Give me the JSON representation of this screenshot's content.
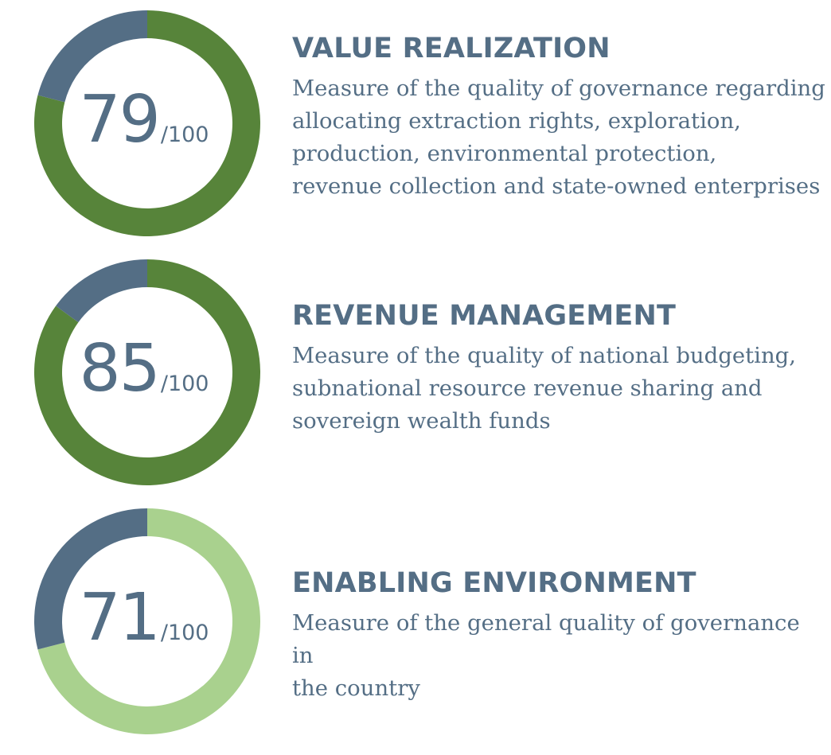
{
  "chart_data": [
    {
      "type": "pie",
      "value": 79,
      "max": 100,
      "value_label": "79",
      "max_label": "/100",
      "title": "VALUE REALIZATION",
      "description": "Measure of the quality of governance regarding\nallocating extraction rights, exploration,\nproduction, environmental protection,\nrevenue collection and state-owned enterprises",
      "fill_color": "#57843a",
      "remainder_color": "#546e85"
    },
    {
      "type": "pie",
      "value": 85,
      "max": 100,
      "value_label": "85",
      "max_label": "/100",
      "title": "REVENUE MANAGEMENT",
      "description": "Measure of the quality of national budgeting,\nsubnational resource revenue sharing and\nsovereign wealth funds",
      "fill_color": "#57843a",
      "remainder_color": "#546e85"
    },
    {
      "type": "pie",
      "value": 71,
      "max": 100,
      "value_label": "71",
      "max_label": "/100",
      "title": "ENABLING ENVIRONMENT",
      "description": "Measure of the general quality of governance in\nthe country",
      "fill_color": "#a9d18e",
      "remainder_color": "#546e85"
    }
  ]
}
